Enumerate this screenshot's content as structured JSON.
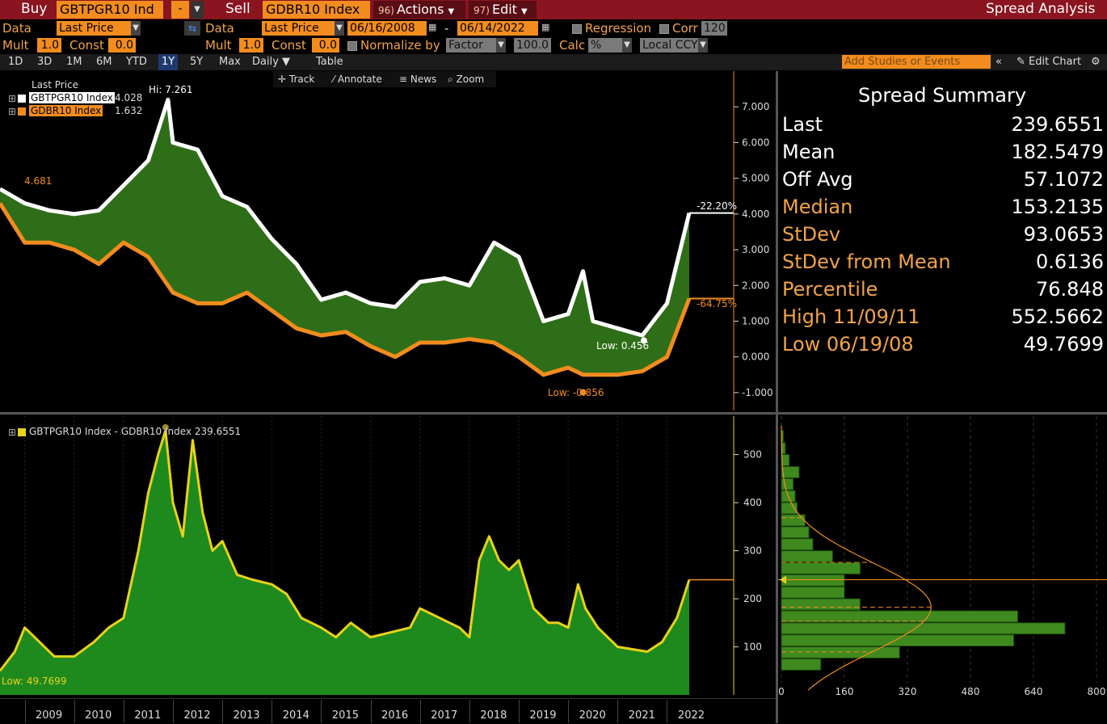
{
  "topbar": {
    "buy_label": "Buy",
    "buy_ticker": "GBTPGR10 Ind",
    "sell_label": "Sell",
    "sell_ticker": "GDBR10 Index",
    "actions_num": "96)",
    "actions_label": "Actions",
    "edit_num": "97)",
    "edit_label": "Edit",
    "title": "Spread Analysis"
  },
  "row1": {
    "data_label": "Data",
    "data_value": "Last Price",
    "data2_label": "Data",
    "data2_value": "Last Price",
    "start_date": "06/16/2008",
    "dash": "-",
    "end_date": "06/14/2022",
    "regression_label": "Regression",
    "corr_label": "Corr",
    "corr_value": "120"
  },
  "row2": {
    "mult_label": "Mult",
    "mult_value": "1.0",
    "const_label": "Const",
    "const_value": "0.0",
    "mult2_label": "Mult",
    "mult2_value": "1.0",
    "const2_label": "Const",
    "const2_value": "0.0",
    "normalize_label": "Normalize by",
    "normalize_value": "Factor",
    "normalize_num": "100.0",
    "calc_label": "Calc",
    "calc_value": "%",
    "ccy_value": "Local CCY"
  },
  "timebar": {
    "periods": [
      "1D",
      "3D",
      "1M",
      "6M",
      "YTD",
      "1Y",
      "5Y",
      "Max"
    ],
    "active": "1Y",
    "frequency": "Daily",
    "table": "Table",
    "studies_placeholder": "Add Studies or Events",
    "edit_chart": "Edit Chart"
  },
  "chart_tools": {
    "track": "Track",
    "annotate": "Annotate",
    "news": "News",
    "zoom": "Zoom"
  },
  "upper_chart": {
    "legend_title": "Last Price",
    "series1_name": "GBTPGR10 Index",
    "series1_value": "4.028",
    "series2_name": "GDBR10 Index",
    "series2_value": "1.632",
    "hi_label": "Hi: 7.261",
    "low1_label": "Low: 0.456",
    "low2_label": "Low: -0.856",
    "start_label": "4.681",
    "pct1": "-22.20%",
    "pct2": "-64.75%",
    "y_ticks": [
      "7.000",
      "6.000",
      "5.000",
      "4.000",
      "3.000",
      "2.000",
      "1.000",
      "0.000",
      "-1.000"
    ]
  },
  "lower_chart": {
    "legend": "GBTPGR10 Index - GDBR10 Index 239.6551",
    "low_label": "Low: 49.7699",
    "y_ticks": [
      "500",
      "400",
      "300",
      "200",
      "100"
    ],
    "hist_x_ticks": [
      "0",
      "160",
      "320",
      "480",
      "640",
      "800"
    ],
    "years": [
      "2009",
      "2010",
      "2011",
      "2012",
      "2013",
      "2014",
      "2015",
      "2016",
      "2017",
      "2018",
      "2019",
      "2020",
      "2021",
      "2022"
    ]
  },
  "summary": {
    "title": "Spread Summary",
    "rows": [
      {
        "k": "Last",
        "v": "239.6551",
        "color": "#ffffff"
      },
      {
        "k": "Mean",
        "v": "182.5479",
        "color": "#ffffff"
      },
      {
        "k": "Off Avg",
        "v": "57.1072",
        "color": "#ffffff"
      },
      {
        "k": "Median",
        "v": "153.2135",
        "color": "#f2a34a"
      },
      {
        "k": "StDev",
        "v": "93.0653",
        "color": "#f2a34a"
      },
      {
        "k": "StDev from Mean",
        "v": "0.6136",
        "color": "#f2a34a"
      },
      {
        "k": "Percentile",
        "v": "76.848",
        "color": "#f2a34a"
      },
      {
        "k": "High 11/09/11",
        "v": "552.5662",
        "color": "#f2a34a"
      },
      {
        "k": "Low 06/19/08",
        "v": "49.7699",
        "color": "#f2a34a"
      }
    ]
  },
  "chart_data": [
    {
      "type": "line",
      "title": "",
      "x": [
        2008.5,
        2009,
        2009.5,
        2010,
        2010.5,
        2011,
        2011.5,
        2011.9,
        2012,
        2012.5,
        2013,
        2013.5,
        2014,
        2014.5,
        2015,
        2015.5,
        2016,
        2016.5,
        2017,
        2017.5,
        2018,
        2018.5,
        2019,
        2019.5,
        2020,
        2020.3,
        2020.5,
        2021,
        2021.5,
        2022,
        2022.45
      ],
      "series": [
        {
          "name": "GBTPGR10 Index",
          "values": [
            4.7,
            4.3,
            4.1,
            4.0,
            4.1,
            4.8,
            5.5,
            7.2,
            6.0,
            5.8,
            4.5,
            4.2,
            3.3,
            2.6,
            1.6,
            1.8,
            1.5,
            1.4,
            2.1,
            2.2,
            2.0,
            3.2,
            2.8,
            1.0,
            1.2,
            2.4,
            1.0,
            0.8,
            0.6,
            1.5,
            4.028
          ]
        },
        {
          "name": "GDBR10 Index",
          "values": [
            4.3,
            3.2,
            3.2,
            3.0,
            2.6,
            3.2,
            2.8,
            2.0,
            1.8,
            1.5,
            1.5,
            1.8,
            1.3,
            0.8,
            0.6,
            0.7,
            0.3,
            0.0,
            0.4,
            0.4,
            0.5,
            0.4,
            0.0,
            -0.5,
            -0.3,
            -0.5,
            -0.5,
            -0.5,
            -0.4,
            0.0,
            1.632
          ]
        }
      ],
      "ylim": [
        -1.5,
        8.0
      ]
    },
    {
      "type": "area",
      "title": "",
      "x": [
        2008.5,
        2008.8,
        2009,
        2009.3,
        2009.6,
        2010,
        2010.4,
        2010.7,
        2011,
        2011.3,
        2011.5,
        2011.7,
        2011.85,
        2012,
        2012.2,
        2012.4,
        2012.6,
        2012.8,
        2013,
        2013.3,
        2013.6,
        2014,
        2014.3,
        2014.6,
        2015,
        2015.3,
        2015.6,
        2016,
        2016.4,
        2016.8,
        2017,
        2017.4,
        2017.8,
        2018,
        2018.2,
        2018.4,
        2018.6,
        2018.8,
        2019,
        2019.3,
        2019.6,
        2019.8,
        2020,
        2020.2,
        2020.35,
        2020.6,
        2021,
        2021.3,
        2021.6,
        2021.9,
        2022.2,
        2022.45
      ],
      "series": [
        {
          "name": "GBTPGR10 Index - GDBR10 Index",
          "values": [
            50,
            90,
            140,
            110,
            80,
            80,
            110,
            140,
            160,
            300,
            420,
            500,
            550,
            400,
            330,
            530,
            380,
            300,
            320,
            250,
            240,
            230,
            210,
            160,
            140,
            120,
            150,
            120,
            130,
            140,
            180,
            160,
            140,
            120,
            280,
            330,
            280,
            260,
            280,
            180,
            150,
            150,
            140,
            230,
            180,
            140,
            100,
            95,
            90,
            110,
            160,
            239.6551
          ]
        }
      ],
      "ylim": [
        0,
        580
      ]
    },
    {
      "type": "bar",
      "title": "",
      "categories": [
        "50-75",
        "75-100",
        "100-125",
        "125-150",
        "150-175",
        "175-200",
        "200-225",
        "225-250",
        "250-275",
        "275-300",
        "300-325",
        "325-350",
        "350-375",
        "375-400",
        "400-425",
        "425-450",
        "450-475",
        "475-500",
        "500-525",
        "525-550"
      ],
      "values": [
        100,
        300,
        590,
        720,
        600,
        200,
        160,
        160,
        200,
        130,
        80,
        70,
        60,
        40,
        35,
        30,
        45,
        20,
        10,
        5
      ],
      "ylim": [
        0,
        800
      ]
    }
  ],
  "colors": {
    "red_bar": "#8a1420",
    "orange": "#f28c1e",
    "green_fill": "#2f6e18",
    "spread_fill": "#1e8a1e",
    "spread_line": "#e8d21a",
    "white_series": "#ffffff"
  }
}
